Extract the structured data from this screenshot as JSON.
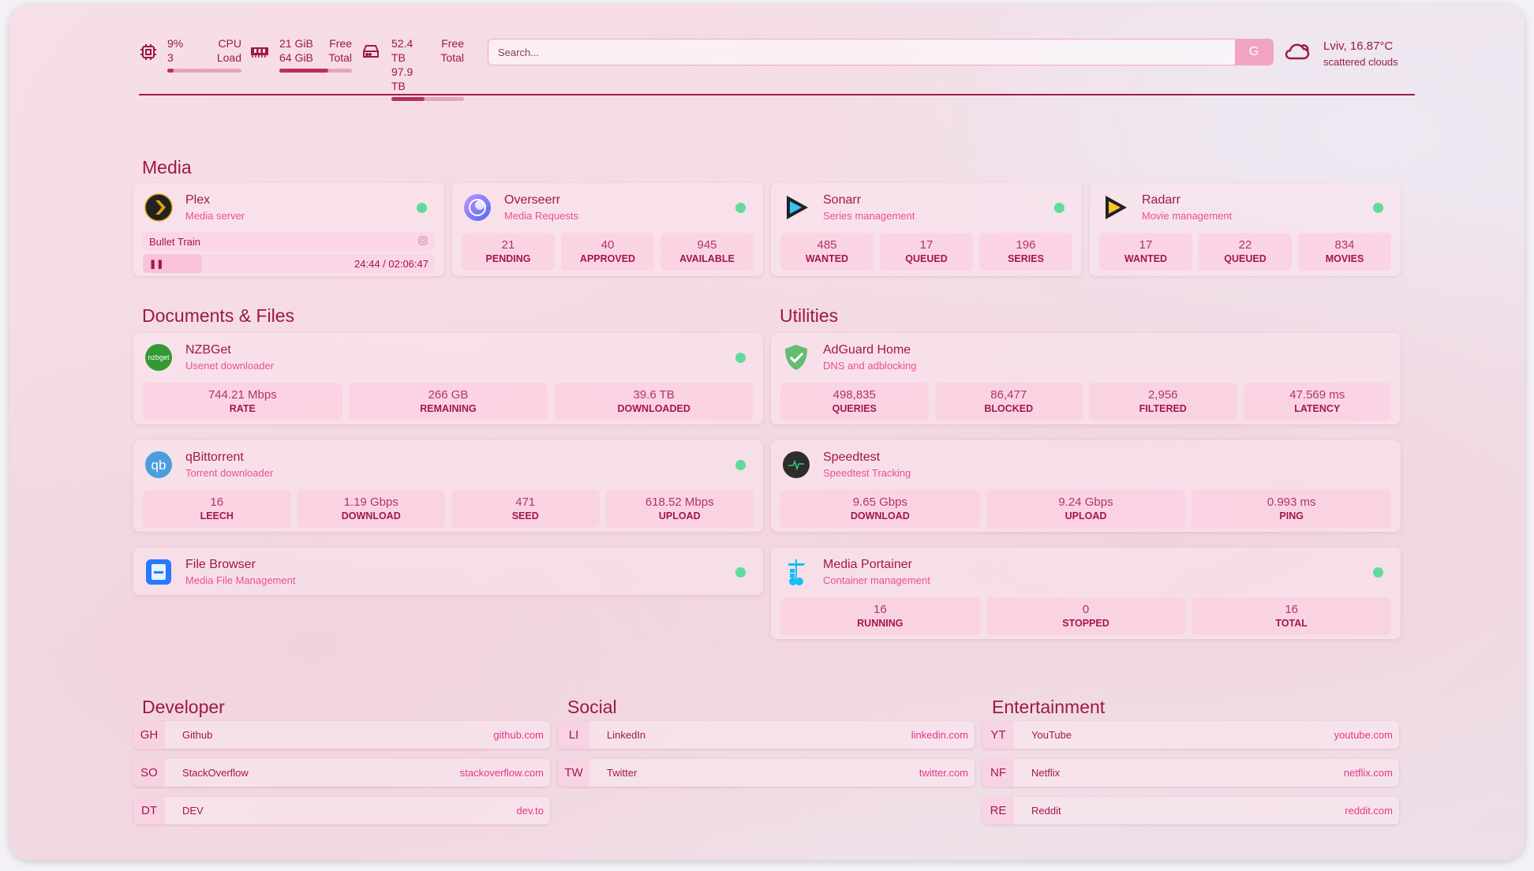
{
  "colors": {
    "accent": "#9d1848",
    "subtitle": "#ec4f93",
    "status_online": "#5fdb9b"
  },
  "resources": {
    "cpu": {
      "icon": "cpu-icon",
      "value1": "9%",
      "value2": "3",
      "label1": "CPU",
      "label2": "Load",
      "percent": 9
    },
    "memory": {
      "icon": "memory-icon",
      "value1": "21 GiB",
      "value2": "64 GiB",
      "label1": "Free",
      "label2": "Total",
      "percent": 67
    },
    "disk": {
      "icon": "hard-drive-icon",
      "value1": "52.4 TB",
      "value2": "97.9 TB",
      "label1": "Free",
      "label2": "Total",
      "percent": 46
    }
  },
  "search": {
    "placeholder": "Search...",
    "button_label": "G"
  },
  "weather": {
    "icon": "cloud-icon",
    "location_temp": "Lviv, 16.87°C",
    "condition": "scattered clouds"
  },
  "sections": {
    "media": "Media",
    "documents": "Documents & Files",
    "utilities": "Utilities",
    "developer": "Developer",
    "social": "Social",
    "entertainment": "Entertainment"
  },
  "media": [
    {
      "name": "Plex",
      "desc": "Media server",
      "icon": "plex-icon",
      "status": "online",
      "now_playing": {
        "title": "Bullet Train",
        "time": "24:44 / 02:06:47",
        "state": "paused"
      }
    },
    {
      "name": "Overseerr",
      "desc": "Media Requests",
      "icon": "overseerr-icon",
      "status": "online",
      "stats": [
        {
          "v": "21",
          "l": "PENDING"
        },
        {
          "v": "40",
          "l": "APPROVED"
        },
        {
          "v": "945",
          "l": "AVAILABLE"
        }
      ]
    },
    {
      "name": "Sonarr",
      "desc": "Series management",
      "icon": "sonarr-icon",
      "status": "online",
      "stats": [
        {
          "v": "485",
          "l": "WANTED"
        },
        {
          "v": "17",
          "l": "QUEUED"
        },
        {
          "v": "196",
          "l": "SERIES"
        }
      ]
    },
    {
      "name": "Radarr",
      "desc": "Movie management",
      "icon": "radarr-icon",
      "status": "online",
      "stats": [
        {
          "v": "17",
          "l": "WANTED"
        },
        {
          "v": "22",
          "l": "QUEUED"
        },
        {
          "v": "834",
          "l": "MOVIES"
        }
      ]
    }
  ],
  "documents": [
    {
      "name": "NZBGet",
      "desc": "Usenet downloader",
      "icon": "nzbget-icon",
      "icon_text": "nzbget",
      "status": "online",
      "stats": [
        {
          "v": "744.21 Mbps",
          "l": "RATE"
        },
        {
          "v": "266 GB",
          "l": "REMAINING"
        },
        {
          "v": "39.6 TB",
          "l": "DOWNLOADED"
        }
      ]
    },
    {
      "name": "qBittorrent",
      "desc": "Torrent downloader",
      "icon": "qbittorrent-icon",
      "icon_text": "qb",
      "status": "online",
      "stats": [
        {
          "v": "16",
          "l": "LEECH"
        },
        {
          "v": "1.19 Gbps",
          "l": "DOWNLOAD"
        },
        {
          "v": "471",
          "l": "SEED"
        },
        {
          "v": "618.52 Mbps",
          "l": "UPLOAD"
        }
      ]
    },
    {
      "name": "File Browser",
      "desc": "Media File Management",
      "icon": "file-browser-icon",
      "status": "online",
      "stats": []
    }
  ],
  "utilities": [
    {
      "name": "AdGuard Home",
      "desc": "DNS and adblocking",
      "icon": "adguard-shield-icon",
      "stats": [
        {
          "v": "498,835",
          "l": "QUERIES"
        },
        {
          "v": "86,477",
          "l": "BLOCKED"
        },
        {
          "v": "2,956",
          "l": "FILTERED"
        },
        {
          "v": "47.569 ms",
          "l": "LATENCY"
        }
      ]
    },
    {
      "name": "Speedtest",
      "desc": "Speedtest Tracking",
      "icon": "speedtest-icon",
      "stats": [
        {
          "v": "9.65 Gbps",
          "l": "DOWNLOAD"
        },
        {
          "v": "9.24 Gbps",
          "l": "UPLOAD"
        },
        {
          "v": "0.993 ms",
          "l": "PING"
        }
      ]
    },
    {
      "name": "Media Portainer",
      "desc": "Container management",
      "icon": "portainer-icon",
      "status": "online",
      "stats": [
        {
          "v": "16",
          "l": "RUNNING"
        },
        {
          "v": "0",
          "l": "STOPPED"
        },
        {
          "v": "16",
          "l": "TOTAL"
        }
      ]
    }
  ],
  "bookmarks": {
    "developer": [
      {
        "abbr": "GH",
        "name": "Github",
        "url": "github.com"
      },
      {
        "abbr": "SO",
        "name": "StackOverflow",
        "url": "stackoverflow.com"
      },
      {
        "abbr": "DT",
        "name": "DEV",
        "url": "dev.to"
      }
    ],
    "social": [
      {
        "abbr": "LI",
        "name": "LinkedIn",
        "url": "linkedin.com"
      },
      {
        "abbr": "TW",
        "name": "Twitter",
        "url": "twitter.com"
      }
    ],
    "entertainment": [
      {
        "abbr": "YT",
        "name": "YouTube",
        "url": "youtube.com"
      },
      {
        "abbr": "NF",
        "name": "Netflix",
        "url": "netflix.com"
      },
      {
        "abbr": "RE",
        "name": "Reddit",
        "url": "reddit.com"
      }
    ]
  }
}
